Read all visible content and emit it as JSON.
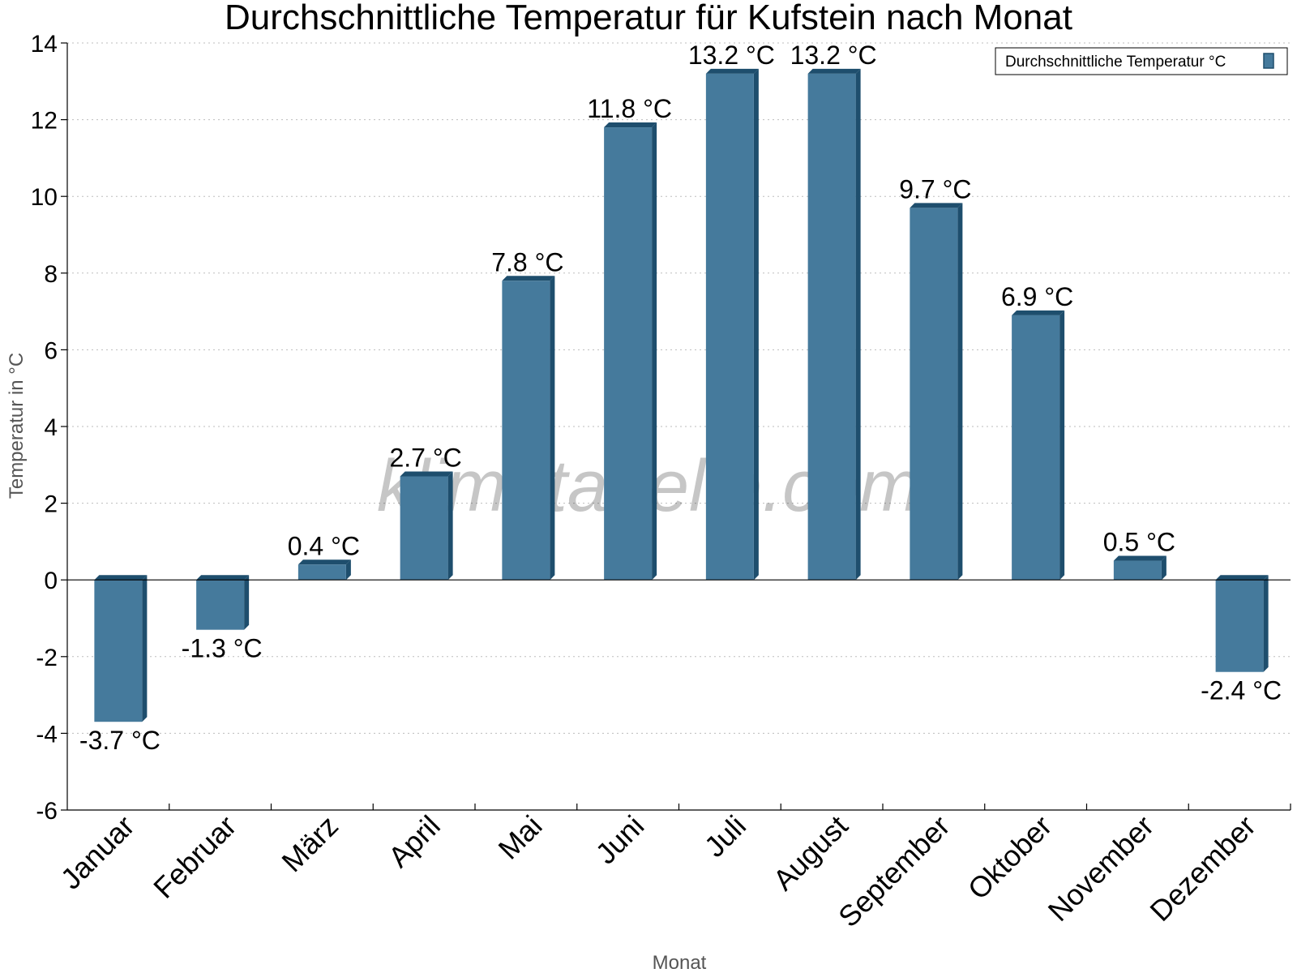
{
  "chart_data": {
    "type": "bar",
    "title": "Durchschnittliche Temperatur für Kufstein nach Monat",
    "xlabel": "Monat",
    "ylabel": "Temperatur in °C",
    "categories": [
      "Januar",
      "Februar",
      "März",
      "April",
      "Mai",
      "Juni",
      "Juli",
      "August",
      "September",
      "Oktober",
      "November",
      "Dezember"
    ],
    "series": [
      {
        "name": "Durchschnittliche Temperatur °C",
        "values": [
          -3.7,
          -1.3,
          0.4,
          2.7,
          7.8,
          11.8,
          13.2,
          13.2,
          9.7,
          6.9,
          0.5,
          -2.4
        ],
        "labels": [
          "-3.7 °C",
          "-1.3 °C",
          "0.4 °C",
          "2.7 °C",
          "7.8 °C",
          "11.8 °C",
          "13.2 °C",
          "13.2 °C",
          "9.7 °C",
          "6.9 °C",
          "0.5 °C",
          "-2.4 °C"
        ]
      }
    ],
    "ylim": [
      -6,
      14
    ],
    "yticks": [
      -6,
      -4,
      -2,
      0,
      2,
      4,
      6,
      8,
      10,
      12,
      14
    ],
    "grid": true,
    "legend_position": "top-right",
    "colors": {
      "bar": "#457a9c",
      "bar_dark": "#1e4e6d"
    },
    "watermark": "klimatabelle.com"
  }
}
